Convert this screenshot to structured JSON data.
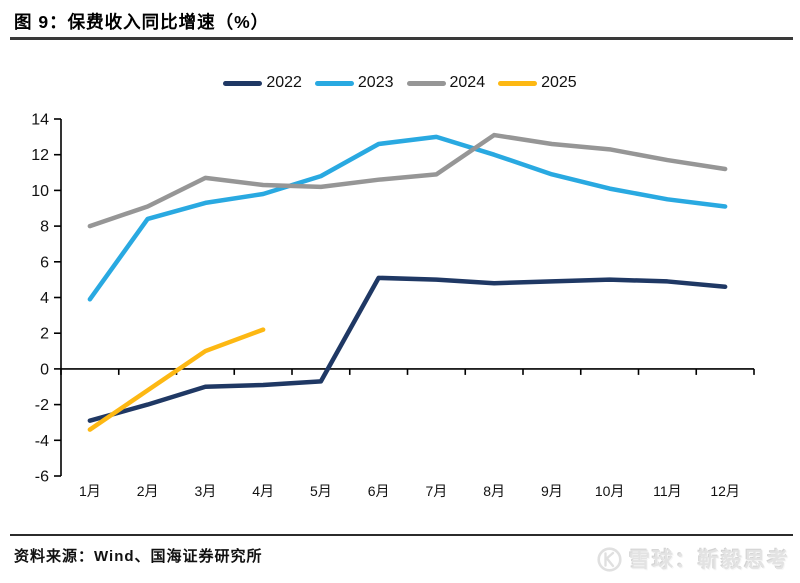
{
  "header": {
    "title": "图 9：保费收入同比增速（%）"
  },
  "footer": {
    "source": "资料来源：Wind、国海证券研究所",
    "watermark": "雪球：靳毅思考",
    "watermark_logo": "xueqiu-circle-k-icon"
  },
  "chart_data": {
    "type": "line",
    "title": "保费收入同比增速（%）",
    "xlabel": "",
    "ylabel": "",
    "categories": [
      "1月",
      "2月",
      "3月",
      "4月",
      "5月",
      "6月",
      "7月",
      "8月",
      "9月",
      "10月",
      "11月",
      "12月"
    ],
    "series": [
      {
        "name": "2022",
        "color": "#1f3864",
        "values": [
          -2.9,
          -2.0,
          -1.0,
          -0.9,
          -0.7,
          5.1,
          5.0,
          4.8,
          4.9,
          5.0,
          4.9,
          4.6
        ]
      },
      {
        "name": "2023",
        "color": "#29a9e1",
        "values": [
          3.9,
          8.4,
          9.3,
          9.8,
          10.8,
          12.6,
          13.0,
          12.0,
          10.9,
          10.1,
          9.5,
          9.1
        ]
      },
      {
        "name": "2024",
        "color": "#969696",
        "values": [
          8.0,
          9.1,
          10.7,
          10.3,
          10.2,
          10.6,
          10.9,
          13.1,
          12.6,
          12.3,
          11.7,
          11.2
        ]
      },
      {
        "name": "2025",
        "color": "#fdb813",
        "values": [
          -3.4,
          -1.2,
          1.0,
          2.2
        ]
      }
    ],
    "ylim": [
      -6,
      14
    ],
    "yticks": [
      -6,
      -4,
      -2,
      0,
      2,
      4,
      6,
      8,
      10,
      12,
      14
    ],
    "grid": false,
    "legend_position": "top-center",
    "axis_color": "#000000",
    "x_ticks_between_categories": true
  }
}
